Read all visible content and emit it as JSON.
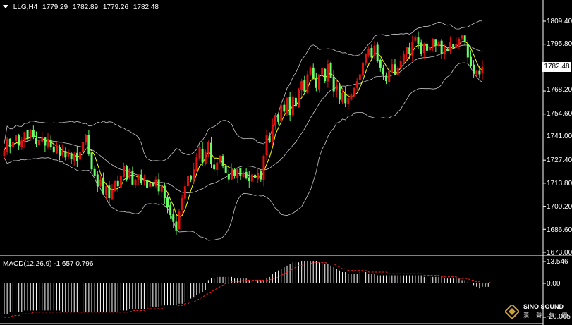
{
  "header": {
    "symbol": "LLG,H4",
    "open": "1779.29",
    "high": "1782.89",
    "low": "1779.26",
    "close": "1782.48"
  },
  "price_axis": {
    "ticks": [
      "1809.40",
      "1795.80",
      "1782.48",
      "1768.20",
      "1754.60",
      "1741.00",
      "1727.40",
      "1713.80",
      "1700.20",
      "1686.60",
      "1673.00"
    ],
    "current_price": "1782.48"
  },
  "macd": {
    "label": "MACD(12,26,9) -1.657 0.796",
    "ticks": [
      "13.546",
      "0.00",
      "-20.005"
    ]
  },
  "logo": {
    "name": "SINO SOUND",
    "chinese": "漢 聲 集 團"
  },
  "colors": {
    "up_candle": "#e01010",
    "down_candle": "#66ff66",
    "bollinger": "#c8c8c8",
    "moving_average": "#ffff00",
    "macd_signal": "#ff2020",
    "macd_histogram": "#ffffff",
    "axis": "#ffffff"
  },
  "chart_data": {
    "type": "candlestick",
    "y_range": [
      1673.0,
      1812.0
    ],
    "closes": [
      1733,
      1740,
      1735,
      1738,
      1742,
      1736,
      1739,
      1744,
      1740,
      1745,
      1741,
      1737,
      1739,
      1741,
      1736,
      1740,
      1735,
      1732,
      1736,
      1730,
      1733,
      1729,
      1732,
      1728,
      1731,
      1727,
      1732,
      1738,
      1742,
      1731,
      1722,
      1718,
      1712,
      1716,
      1708,
      1712,
      1705,
      1710,
      1715,
      1712,
      1718,
      1724,
      1716,
      1722,
      1713,
      1716,
      1719,
      1714,
      1716,
      1711,
      1714,
      1712,
      1716,
      1709,
      1712,
      1705,
      1700,
      1695,
      1691,
      1686,
      1697,
      1705,
      1712,
      1718,
      1716,
      1722,
      1729,
      1735,
      1726,
      1732,
      1738,
      1725,
      1722,
      1726,
      1730,
      1724,
      1720,
      1716,
      1722,
      1718,
      1722,
      1718,
      1720,
      1717,
      1715,
      1719,
      1717,
      1720,
      1716,
      1730,
      1742,
      1738,
      1748,
      1754,
      1750,
      1760,
      1756,
      1764,
      1754,
      1765,
      1759,
      1769,
      1774,
      1768,
      1778,
      1782,
      1776,
      1770,
      1778,
      1782,
      1774,
      1784,
      1776,
      1768,
      1772,
      1763,
      1767,
      1761,
      1764,
      1766,
      1770,
      1774,
      1778,
      1785,
      1790,
      1793,
      1788,
      1795,
      1786,
      1782,
      1778,
      1774,
      1780,
      1784,
      1778,
      1782,
      1786,
      1790,
      1794,
      1790,
      1797,
      1800,
      1796,
      1790,
      1796,
      1792,
      1794,
      1799,
      1795,
      1797,
      1790,
      1794,
      1792,
      1797,
      1794,
      1796,
      1799,
      1801,
      1797,
      1788,
      1783,
      1779,
      1780,
      1778,
      1782.48
    ],
    "macd_hist": [
      -18,
      -18,
      -17,
      -17,
      -17,
      -17,
      -17,
      -16,
      -16,
      -16,
      -16,
      -16,
      -16,
      -16,
      -16,
      -16,
      -16,
      -16,
      -16,
      -16,
      -17,
      -17,
      -17,
      -17,
      -17,
      -17,
      -17,
      -17,
      -17,
      -17,
      -17,
      -17,
      -17,
      -17,
      -17,
      -17,
      -17,
      -17,
      -17,
      -17,
      -16,
      -16,
      -16,
      -15,
      -15,
      -15,
      -15,
      -15,
      -15,
      -15,
      -14,
      -14,
      -14,
      -14,
      -13,
      -13,
      -13,
      -13,
      -13,
      -13,
      -12,
      -12,
      -11,
      -10,
      -9,
      -8,
      -7,
      -6,
      -5,
      -4,
      2,
      3,
      3,
      4,
      4,
      4,
      4,
      4,
      4,
      3,
      3,
      3,
      3,
      3,
      2,
      2,
      2,
      2,
      2,
      2,
      3,
      4,
      6,
      7,
      8,
      9,
      10,
      11,
      12,
      13,
      13,
      13,
      14,
      14,
      14,
      14,
      14,
      14,
      13,
      13,
      12,
      12,
      11,
      10,
      9,
      8,
      7,
      7,
      6,
      6,
      6,
      6,
      7,
      7,
      7,
      6,
      6,
      6,
      5,
      5,
      5,
      5,
      5,
      5,
      5,
      5,
      5,
      5,
      5,
      5,
      5,
      5,
      5,
      5,
      4,
      4,
      4,
      4,
      4,
      4,
      4,
      3,
      3,
      3,
      3,
      3,
      3,
      2,
      2,
      1,
      0,
      -1,
      -2,
      -3,
      -2,
      -2,
      -2
    ],
    "macd_signal": [
      -20,
      -20,
      -20,
      -19,
      -19,
      -19,
      -18,
      -18,
      -18,
      -18,
      -17,
      -17,
      -17,
      -17,
      -17,
      -17,
      -17,
      -17,
      -17,
      -17,
      -17,
      -17,
      -17,
      -17,
      -17,
      -17,
      -17,
      -17,
      -17,
      -17,
      -17,
      -17,
      -17,
      -17,
      -17,
      -17,
      -17,
      -17,
      -17,
      -17,
      -17,
      -17,
      -17,
      -17,
      -16,
      -16,
      -16,
      -16,
      -16,
      -15,
      -15,
      -15,
      -15,
      -15,
      -15,
      -14,
      -14,
      -14,
      -14,
      -14,
      -13,
      -13,
      -12,
      -12,
      -11,
      -11,
      -10,
      -9,
      -8,
      -7,
      -6,
      -5,
      -4,
      -3,
      -2,
      -1,
      0,
      0,
      1,
      1,
      1,
      1,
      2,
      2,
      2,
      2,
      2,
      2,
      2,
      2,
      2,
      2,
      3,
      3,
      4,
      5,
      6,
      7,
      8,
      9,
      10,
      11,
      11,
      12,
      12,
      12,
      13,
      13,
      13,
      13,
      13,
      12,
      12,
      12,
      11,
      10,
      9,
      9,
      8,
      8,
      8,
      8,
      8,
      8,
      8,
      7,
      7,
      7,
      7,
      7,
      7,
      7,
      6,
      6,
      6,
      6,
      6,
      6,
      6,
      6,
      6,
      6,
      6,
      6,
      5,
      5,
      5,
      5,
      5,
      5,
      4,
      4,
      4,
      4,
      4,
      4,
      3,
      3,
      3,
      3,
      2,
      2,
      1,
      1,
      0,
      0,
      0,
      1
    ]
  }
}
